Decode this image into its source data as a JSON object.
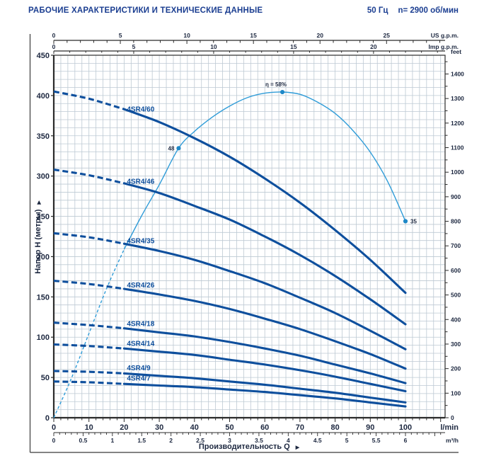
{
  "header": {
    "title": "РАБОЧИЕ ХАРАКТЕРИСТИКИ И ТЕХНИЧЕСКИЕ ДАННЫЕ",
    "frequency": "50 Гц",
    "speed": "n= 2900 об/мин"
  },
  "colors": {
    "header_navy": "#1b3e91",
    "curve_blue": "#0e4f9d",
    "efficiency_blue": "#2f9cd8",
    "marker_dot": "#1e88c7",
    "grid": "#bdc9d3",
    "axis": "#2b2b2b",
    "tick_text": "#1d2840"
  },
  "chart_data": {
    "type": "line",
    "title": "РАБОЧИЕ ХАРАКТЕРИСТИКИ И ТЕХНИЧЕСКИЕ ДАННЫЕ",
    "frequency": "50 Гц",
    "speed": "n= 2900 об/мин",
    "xlabel": "Производительность Q",
    "ylabel": "Напор H (метры)",
    "x_axes": {
      "lmin": {
        "unit": "l/min",
        "labels": [
          0,
          10,
          20,
          30,
          40,
          50,
          60,
          70,
          80,
          90,
          100
        ],
        "minor_step": 2,
        "major_step": 10
      },
      "m3h": {
        "unit": "m³/h",
        "labels": [
          0,
          0.5,
          1,
          1.5,
          2,
          2.5,
          3,
          3.5,
          4,
          4.5,
          5,
          5.5,
          6
        ],
        "minor_step": 0.1,
        "major_step": 0.5,
        "lmin_per_unit": 16.667
      },
      "us_gpm": {
        "unit": "US g.p.m.",
        "labels": [
          0,
          5,
          10,
          15,
          20,
          25
        ],
        "minor_step": 1,
        "major_step": 5,
        "lmin_per_unit": 3.785
      },
      "imp_gpm": {
        "unit": "Imp g.p.m.",
        "labels": [
          0,
          5,
          10,
          15,
          20
        ],
        "minor_step": 1,
        "major_step": 5,
        "lmin_per_unit": 4.546
      }
    },
    "y_axes": {
      "meters": {
        "label": "Напор H (метры)",
        "labels": [
          0,
          50,
          100,
          150,
          200,
          250,
          300,
          350,
          400,
          450
        ],
        "min": 0,
        "max": 450,
        "grid_step": 10,
        "major_step": 50
      },
      "feet": {
        "unit": "feet",
        "labels": [
          0,
          100,
          200,
          300,
          400,
          500,
          600,
          700,
          800,
          900,
          1000,
          1100,
          1200,
          1300,
          1400
        ],
        "minor_step": 50,
        "m_per_unit": 0.3048
      }
    },
    "dash_until_lmin": 20,
    "q_lmin": [
      0,
      10,
      20,
      30,
      40,
      50,
      60,
      70,
      80,
      90,
      100
    ],
    "head_curves": [
      {
        "name": "4SR4/60",
        "head_m": [
          405,
          396,
          383,
          367,
          347,
          324,
          297,
          267,
          233,
          196,
          155
        ]
      },
      {
        "name": "4SR4/46",
        "head_m": [
          308,
          301,
          291,
          279,
          263,
          246,
          225,
          202,
          176,
          147,
          116
        ]
      },
      {
        "name": "4SR4/35",
        "head_m": [
          229,
          224,
          216,
          207,
          196,
          182,
          167,
          149,
          130,
          108,
          85
        ]
      },
      {
        "name": "4SR4/26",
        "head_m": [
          170,
          166,
          160,
          153,
          145,
          135,
          123,
          110,
          95,
          79,
          61
        ]
      },
      {
        "name": "4SR4/18",
        "head_m": [
          118,
          115,
          111,
          106,
          101,
          94,
          86,
          77,
          66,
          55,
          43
        ]
      },
      {
        "name": "4SR4/14",
        "head_m": [
          91,
          89,
          86,
          82,
          78,
          72,
          66,
          59,
          51,
          42,
          33
        ]
      },
      {
        "name": "4SR4/9",
        "head_m": [
          58,
          57,
          55,
          52,
          49,
          45,
          41,
          36,
          31,
          25,
          19
        ]
      },
      {
        "name": "4SR4/7",
        "head_m": [
          45,
          44,
          42,
          40,
          38,
          35,
          32,
          28,
          24,
          19,
          14
        ]
      }
    ],
    "efficiency_curve": {
      "unit": "%",
      "m_per_percent": 6.97,
      "points_q_eta": [
        [
          0,
          0
        ],
        [
          5,
          7
        ],
        [
          10,
          15
        ],
        [
          15,
          23
        ],
        [
          20,
          30
        ],
        [
          25,
          36
        ],
        [
          30,
          41.5
        ],
        [
          35.5,
          48
        ],
        [
          40,
          51
        ],
        [
          45,
          53.5
        ],
        [
          50,
          55.5
        ],
        [
          55,
          57
        ],
        [
          60,
          57.8
        ],
        [
          65,
          58
        ],
        [
          70,
          57.6
        ],
        [
          75,
          56.2
        ],
        [
          80,
          54.2
        ],
        [
          85,
          51.2
        ],
        [
          90,
          47.3
        ],
        [
          95,
          42
        ],
        [
          100,
          35
        ]
      ],
      "markers": [
        {
          "q_lmin": 35.5,
          "eta": 48,
          "label": "48",
          "side": "left"
        },
        {
          "q_lmin": 65,
          "eta": 58,
          "label": "η = 58%",
          "side": "top"
        },
        {
          "q_lmin": 100,
          "eta": 35,
          "label": "35",
          "side": "right"
        }
      ]
    }
  }
}
